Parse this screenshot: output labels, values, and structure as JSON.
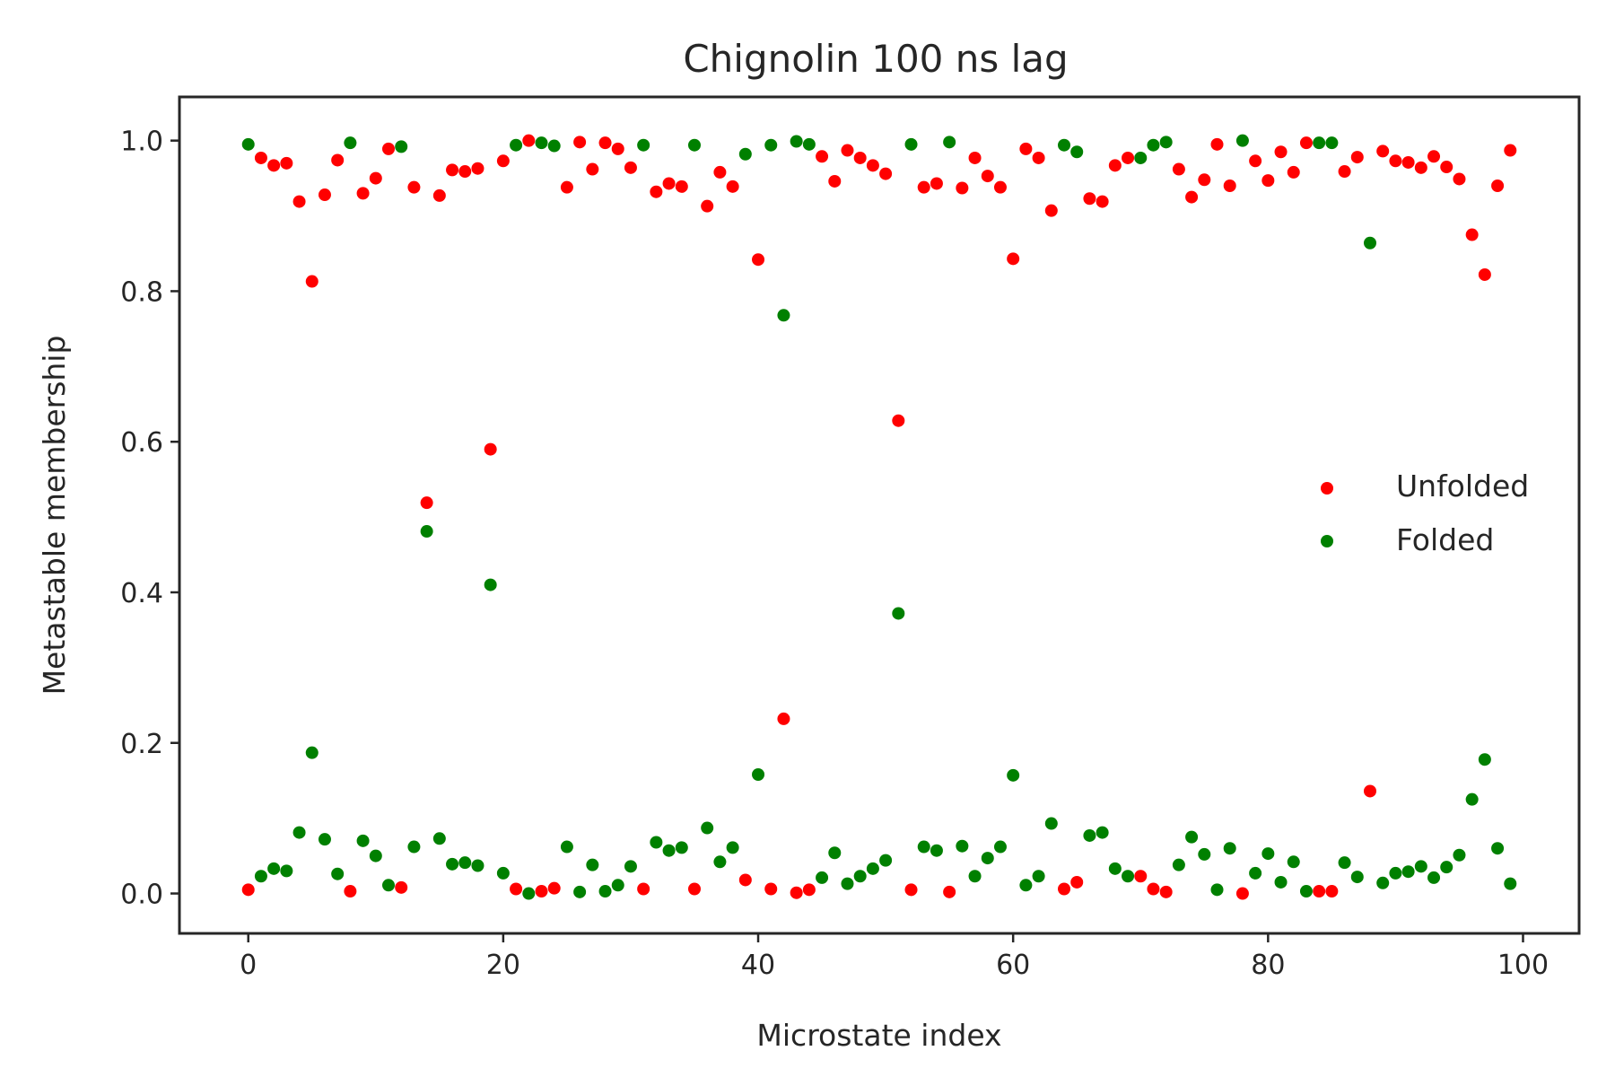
{
  "chart_data": {
    "type": "scatter",
    "title": "Chignolin 100 ns lag",
    "xlabel": "Microstate index",
    "ylabel": "Metastable membership",
    "xlim": [
      -5.4,
      104.4
    ],
    "ylim": [
      -0.053,
      1.058
    ],
    "xticks": [
      "0",
      "20",
      "40",
      "60",
      "80",
      "100"
    ],
    "yticks": [
      "0.0",
      "0.2",
      "0.4",
      "0.6",
      "0.8",
      "1.0"
    ],
    "grid": false,
    "legend": "center-right",
    "series": [
      {
        "name": "Unfolded",
        "color": "#ff0000",
        "x": [
          0,
          1,
          2,
          3,
          4,
          5,
          6,
          7,
          8,
          9,
          10,
          11,
          12,
          13,
          14,
          15,
          16,
          17,
          18,
          19,
          20,
          21,
          22,
          23,
          24,
          25,
          26,
          27,
          28,
          29,
          30,
          31,
          32,
          33,
          34,
          35,
          36,
          37,
          38,
          39,
          40,
          41,
          42,
          43,
          44,
          45,
          46,
          47,
          48,
          49,
          50,
          51,
          52,
          53,
          54,
          55,
          56,
          57,
          58,
          59,
          60,
          61,
          62,
          63,
          64,
          65,
          66,
          67,
          68,
          69,
          70,
          71,
          72,
          73,
          74,
          75,
          76,
          77,
          78,
          79,
          80,
          81,
          82,
          83,
          84,
          85,
          86,
          87,
          88,
          89,
          90,
          91,
          92,
          93,
          94,
          95,
          96,
          97,
          98,
          99
        ],
        "y": [
          0.005,
          0.977,
          0.967,
          0.97,
          0.919,
          0.813,
          0.928,
          0.974,
          0.003,
          0.93,
          0.95,
          0.989,
          0.008,
          0.938,
          0.519,
          0.927,
          0.961,
          0.959,
          0.963,
          0.59,
          0.973,
          0.006,
          1.0,
          0.003,
          0.007,
          0.938,
          0.998,
          0.962,
          0.997,
          0.989,
          0.964,
          0.006,
          0.932,
          0.943,
          0.939,
          0.006,
          0.913,
          0.958,
          0.939,
          0.018,
          0.842,
          0.006,
          0.232,
          0.001,
          0.005,
          0.979,
          0.946,
          0.987,
          0.977,
          0.967,
          0.956,
          0.628,
          0.005,
          0.938,
          0.943,
          0.002,
          0.937,
          0.977,
          0.953,
          0.938,
          0.843,
          0.989,
          0.977,
          0.907,
          0.006,
          0.015,
          0.923,
          0.919,
          0.967,
          0.977,
          0.023,
          0.006,
          0.002,
          0.962,
          0.925,
          0.948,
          0.995,
          0.94,
          0.0,
          0.973,
          0.947,
          0.985,
          0.958,
          0.997,
          0.003,
          0.003,
          0.959,
          0.978,
          0.136,
          0.986,
          0.973,
          0.971,
          0.964,
          0.979,
          0.965,
          0.949,
          0.875,
          0.822,
          0.94,
          0.987
        ]
      },
      {
        "name": "Folded",
        "color": "#008000",
        "x": [
          0,
          1,
          2,
          3,
          4,
          5,
          6,
          7,
          8,
          9,
          10,
          11,
          12,
          13,
          14,
          15,
          16,
          17,
          18,
          19,
          20,
          21,
          22,
          23,
          24,
          25,
          26,
          27,
          28,
          29,
          30,
          31,
          32,
          33,
          34,
          35,
          36,
          37,
          38,
          39,
          40,
          41,
          42,
          43,
          44,
          45,
          46,
          47,
          48,
          49,
          50,
          51,
          52,
          53,
          54,
          55,
          56,
          57,
          58,
          59,
          60,
          61,
          62,
          63,
          64,
          65,
          66,
          67,
          68,
          69,
          70,
          71,
          72,
          73,
          74,
          75,
          76,
          77,
          78,
          79,
          80,
          81,
          82,
          83,
          84,
          85,
          86,
          87,
          88,
          89,
          90,
          91,
          92,
          93,
          94,
          95,
          96,
          97,
          98,
          99
        ],
        "y": [
          0.995,
          0.023,
          0.033,
          0.03,
          0.081,
          0.187,
          0.072,
          0.026,
          0.997,
          0.07,
          0.05,
          0.011,
          0.992,
          0.062,
          0.481,
          0.073,
          0.039,
          0.041,
          0.037,
          0.41,
          0.027,
          0.994,
          0.0,
          0.997,
          0.993,
          0.062,
          0.002,
          0.038,
          0.003,
          0.011,
          0.036,
          0.994,
          0.068,
          0.057,
          0.061,
          0.994,
          0.087,
          0.042,
          0.061,
          0.982,
          0.158,
          0.994,
          0.768,
          0.999,
          0.995,
          0.021,
          0.054,
          0.013,
          0.023,
          0.033,
          0.044,
          0.372,
          0.995,
          0.062,
          0.057,
          0.998,
          0.063,
          0.023,
          0.047,
          0.062,
          0.157,
          0.011,
          0.023,
          0.093,
          0.994,
          0.985,
          0.077,
          0.081,
          0.033,
          0.023,
          0.977,
          0.994,
          0.998,
          0.038,
          0.075,
          0.052,
          0.005,
          0.06,
          1.0,
          0.027,
          0.053,
          0.015,
          0.042,
          0.003,
          0.997,
          0.997,
          0.041,
          0.022,
          0.864,
          0.014,
          0.027,
          0.029,
          0.036,
          0.021,
          0.035,
          0.051,
          0.125,
          0.178,
          0.06,
          0.013
        ]
      }
    ]
  }
}
